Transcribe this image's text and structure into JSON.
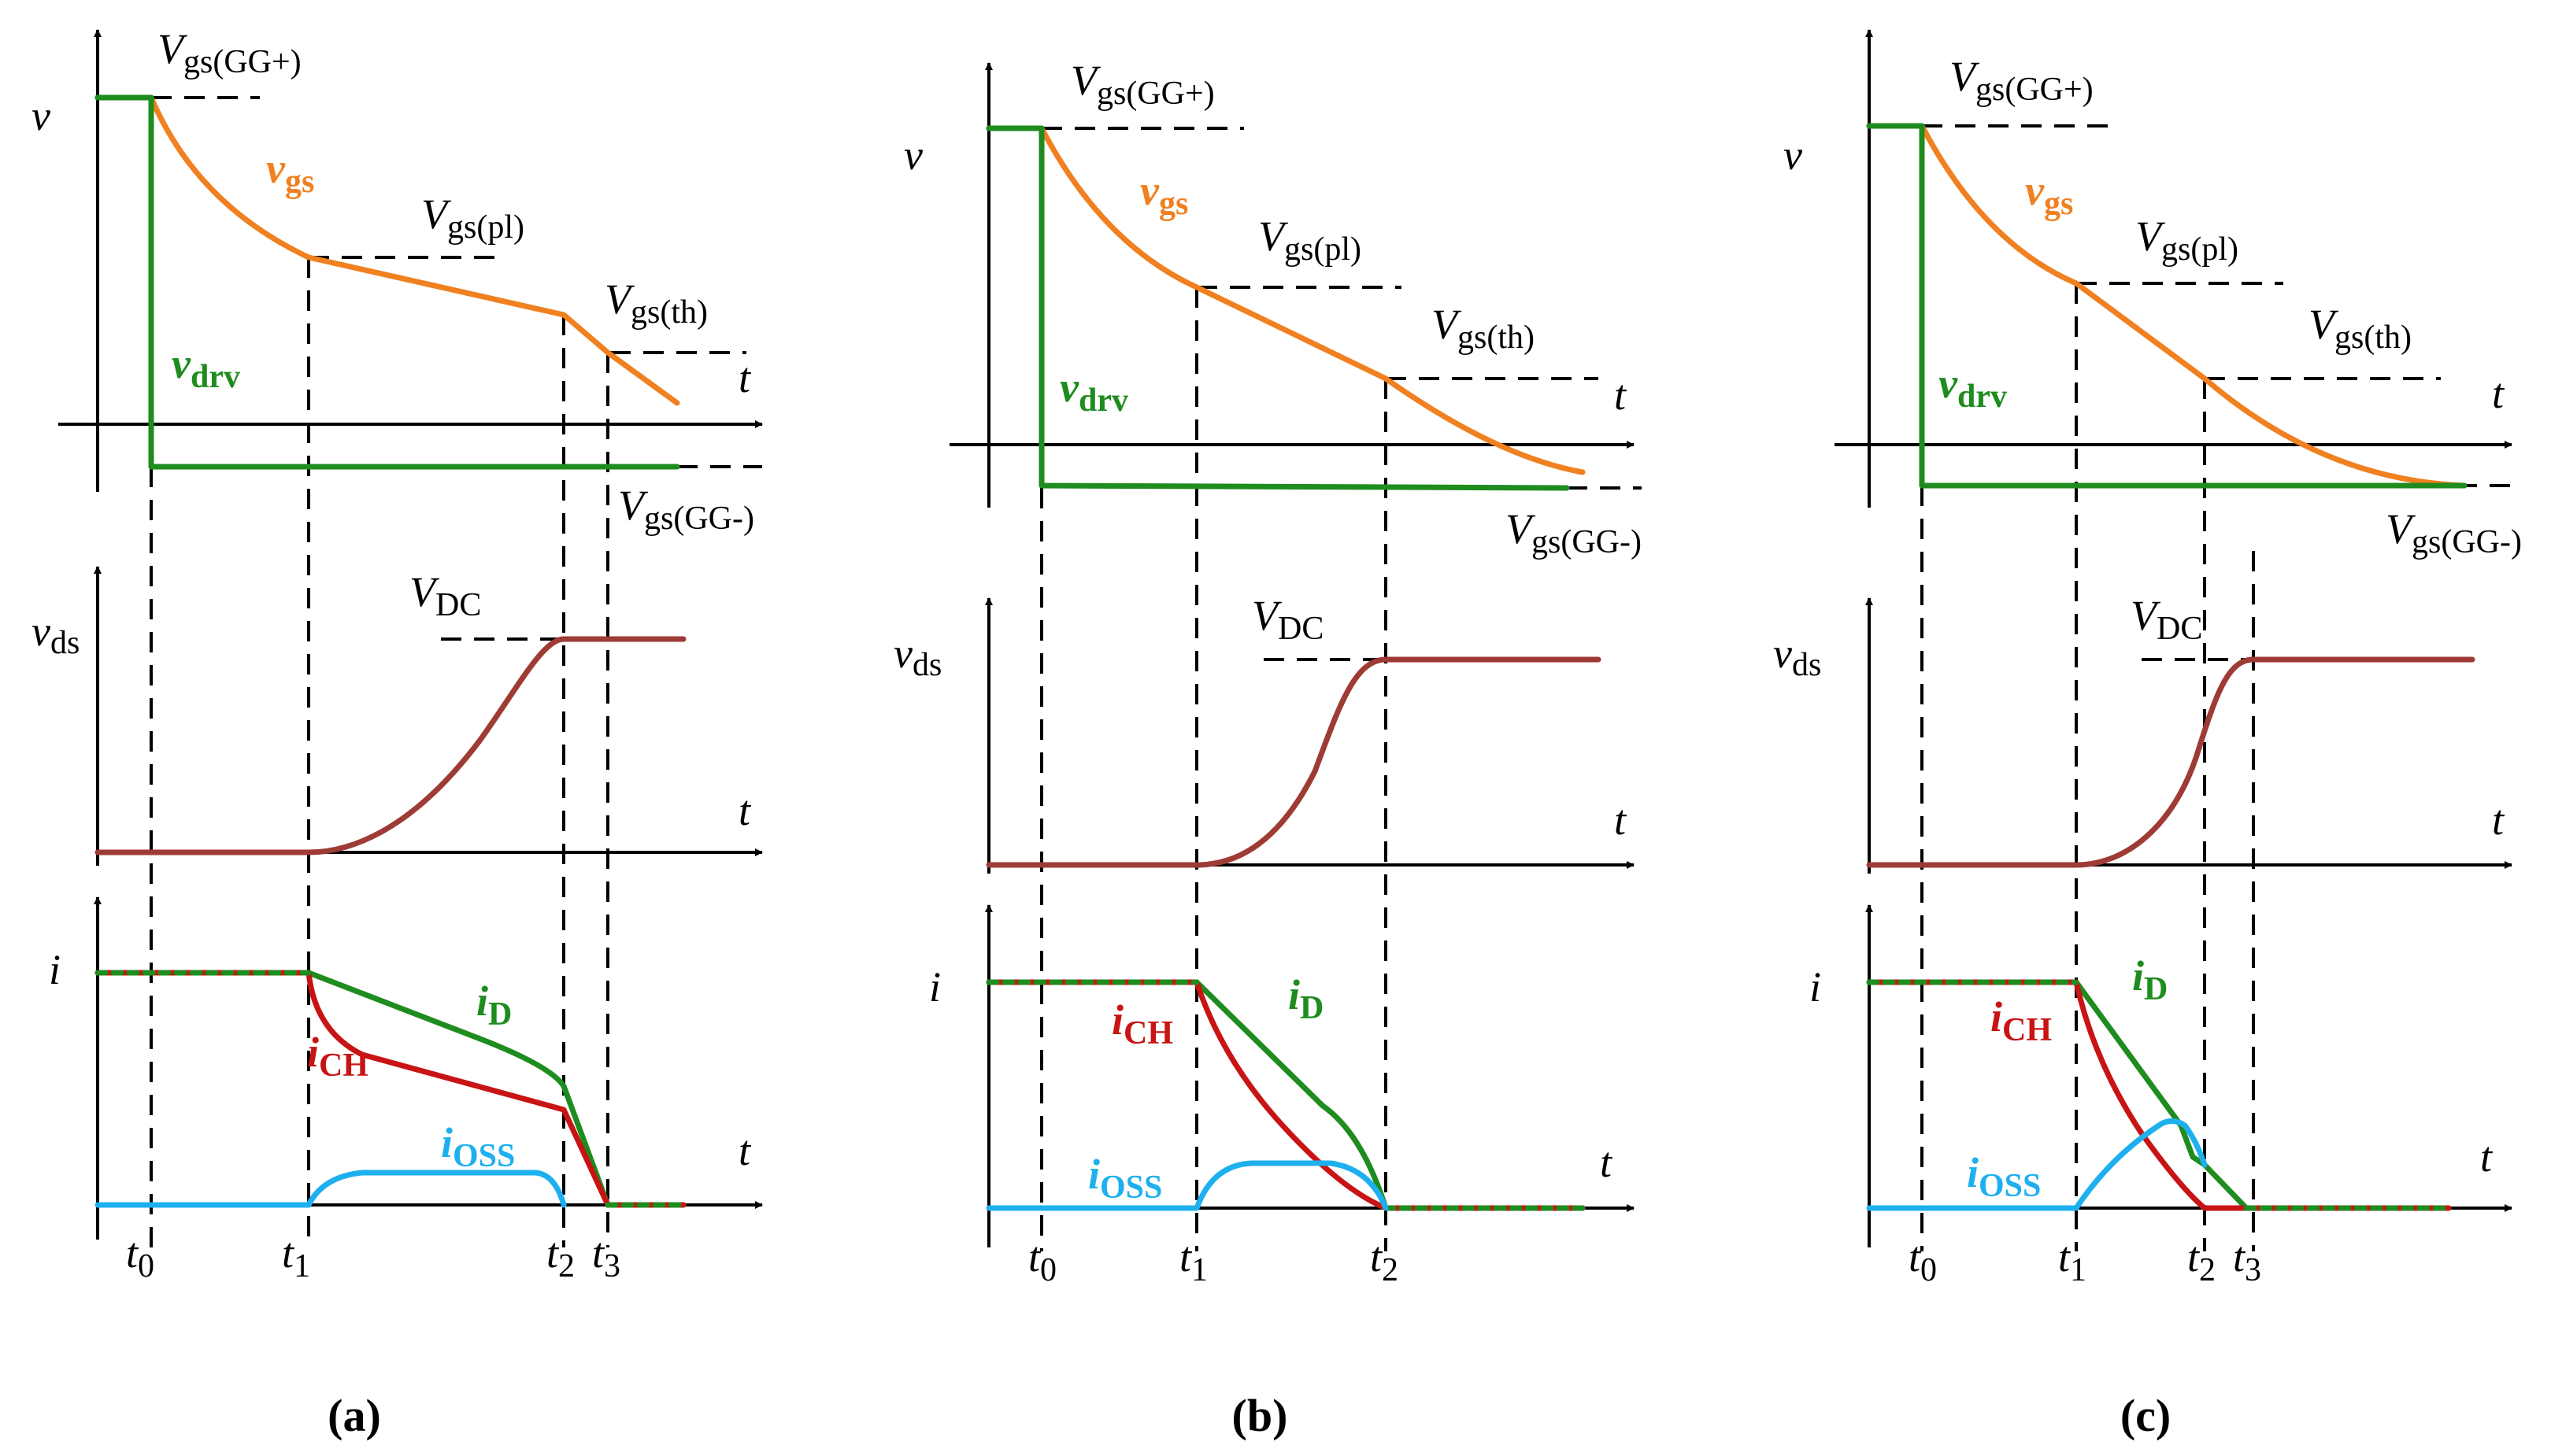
{
  "colors": {
    "axis": "#000000",
    "vgs": "#F08020",
    "vdrv": "#1E8C1E",
    "vds": "#9E3B35",
    "iD": "#1E8C1E",
    "iCH": "#C81414",
    "iOSS": "#1EB0EE"
  },
  "labels": {
    "v": "v",
    "t": "t",
    "vds_v": "v",
    "vds_sub": "ds",
    "i": "i",
    "vgs_v": "v",
    "vgs_sub": "gs",
    "vdrv_v": "v",
    "vdrv_sub": "drv",
    "VGGp_V": "V",
    "VGGp_sub": "gs(GG+)",
    "VGGm_V": "V",
    "VGGm_sub": "gs(GG-)",
    "Vpl_V": "V",
    "Vpl_sub": "gs(pl)",
    "Vth_V": "V",
    "Vth_sub": "gs(th)",
    "VDC_V": "V",
    "VDC_sub": "DC",
    "iD_i": "i",
    "iD_sub": "D",
    "iCH_i": "i",
    "iCH_sub": "CH",
    "iOSS_i": "i",
    "iOSS_sub": "OSS",
    "t_t": "t",
    "t0_sub": "0",
    "t1_sub": "1",
    "t2_sub": "2",
    "t3_sub": "3"
  },
  "panels": [
    {
      "id": "a",
      "caption": "(a)"
    },
    {
      "id": "b",
      "caption": "(b)"
    },
    {
      "id": "c",
      "caption": "(c)"
    }
  ]
}
